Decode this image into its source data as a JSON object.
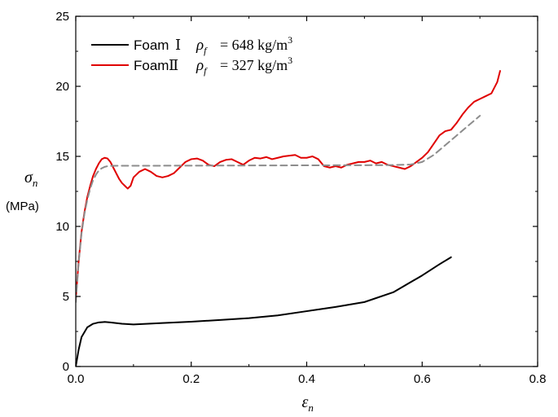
{
  "chart_data": {
    "type": "line",
    "xlim": [
      0.0,
      0.8
    ],
    "ylim": [
      0,
      25
    ],
    "xticks": [
      0.0,
      0.2,
      0.4,
      0.6,
      0.8
    ],
    "xtick_labels": [
      "0.0",
      "0.2",
      "0.4",
      "0.6",
      "0.8"
    ],
    "yticks": [
      0,
      5,
      10,
      15,
      20,
      25
    ],
    "ytick_labels": [
      "0",
      "5",
      "10",
      "15",
      "20",
      "25"
    ],
    "x_label": {
      "symbol": "ε",
      "subscript": "n"
    },
    "y_label": {
      "symbol": "σ",
      "subscript": "n",
      "unit": "(MPa)"
    },
    "legend_position": "top-left",
    "grid": false,
    "legend": [
      {
        "series_ref": "foam1",
        "name": "Foam",
        "roman": "Ⅰ",
        "rho_symbol": "ρ",
        "rho_sub": "f",
        "eq": "= 648 kg/m",
        "sup": "3"
      },
      {
        "series_ref": "foam2",
        "name": "Foam",
        "roman": "Ⅱ",
        "rho_symbol": "ρ",
        "rho_sub": "f",
        "eq": "= 327 kg/m",
        "sup": "3"
      }
    ],
    "series": [
      {
        "id": "foam1",
        "color": "#000000",
        "style": "solid",
        "x": [
          0.0,
          0.005,
          0.01,
          0.02,
          0.03,
          0.04,
          0.05,
          0.06,
          0.08,
          0.1,
          0.15,
          0.2,
          0.25,
          0.3,
          0.35,
          0.4,
          0.45,
          0.5,
          0.55,
          0.6,
          0.63,
          0.65
        ],
        "y": [
          0.0,
          1.2,
          2.1,
          2.8,
          3.05,
          3.15,
          3.18,
          3.15,
          3.05,
          3.0,
          3.1,
          3.2,
          3.32,
          3.45,
          3.65,
          3.95,
          4.25,
          4.6,
          5.3,
          6.5,
          7.3,
          7.8
        ]
      },
      {
        "id": "foam2",
        "color": "#e00000",
        "style": "solid",
        "x": [
          0.0,
          0.005,
          0.01,
          0.015,
          0.02,
          0.025,
          0.03,
          0.035,
          0.04,
          0.045,
          0.05,
          0.055,
          0.06,
          0.065,
          0.07,
          0.075,
          0.08,
          0.085,
          0.09,
          0.095,
          0.1,
          0.11,
          0.12,
          0.13,
          0.14,
          0.15,
          0.16,
          0.17,
          0.18,
          0.19,
          0.2,
          0.21,
          0.22,
          0.23,
          0.24,
          0.25,
          0.26,
          0.27,
          0.28,
          0.29,
          0.3,
          0.31,
          0.32,
          0.33,
          0.34,
          0.35,
          0.36,
          0.37,
          0.38,
          0.39,
          0.4,
          0.41,
          0.42,
          0.43,
          0.44,
          0.45,
          0.46,
          0.47,
          0.48,
          0.49,
          0.5,
          0.51,
          0.52,
          0.53,
          0.54,
          0.55,
          0.56,
          0.57,
          0.58,
          0.59,
          0.6,
          0.61,
          0.62,
          0.63,
          0.64,
          0.65,
          0.66,
          0.67,
          0.68,
          0.69,
          0.7,
          0.71,
          0.72,
          0.73,
          0.735
        ],
        "y": [
          4.8,
          7.5,
          9.6,
          11.0,
          12.1,
          12.9,
          13.6,
          14.1,
          14.5,
          14.8,
          14.9,
          14.85,
          14.6,
          14.2,
          13.8,
          13.4,
          13.1,
          12.9,
          12.7,
          12.9,
          13.5,
          13.9,
          14.1,
          13.9,
          13.6,
          13.5,
          13.6,
          13.8,
          14.2,
          14.6,
          14.8,
          14.85,
          14.7,
          14.4,
          14.3,
          14.6,
          14.75,
          14.8,
          14.6,
          14.4,
          14.7,
          14.9,
          14.85,
          14.95,
          14.8,
          14.9,
          15.0,
          15.05,
          15.1,
          14.9,
          14.9,
          15.0,
          14.8,
          14.3,
          14.2,
          14.3,
          14.2,
          14.4,
          14.5,
          14.6,
          14.6,
          14.7,
          14.5,
          14.6,
          14.4,
          14.3,
          14.2,
          14.1,
          14.3,
          14.6,
          14.9,
          15.3,
          15.9,
          16.5,
          16.8,
          16.9,
          17.4,
          18.0,
          18.5,
          18.9,
          19.1,
          19.3,
          19.5,
          20.3,
          21.1
        ]
      },
      {
        "id": "fit",
        "color": "#8c8c8c",
        "style": "dashed",
        "x": [
          0.0,
          0.005,
          0.01,
          0.015,
          0.02,
          0.025,
          0.03,
          0.035,
          0.04,
          0.045,
          0.05,
          0.055,
          0.06,
          0.07,
          0.08,
          0.1,
          0.2,
          0.3,
          0.4,
          0.5,
          0.55,
          0.58,
          0.6,
          0.62,
          0.64,
          0.66,
          0.68,
          0.7
        ],
        "y": [
          4.6,
          7.4,
          9.5,
          10.9,
          11.9,
          12.7,
          13.3,
          13.7,
          14.0,
          14.15,
          14.25,
          14.3,
          14.32,
          14.33,
          14.33,
          14.33,
          14.34,
          14.35,
          14.36,
          14.37,
          14.38,
          14.42,
          14.6,
          15.1,
          15.8,
          16.5,
          17.2,
          17.9
        ]
      }
    ]
  }
}
